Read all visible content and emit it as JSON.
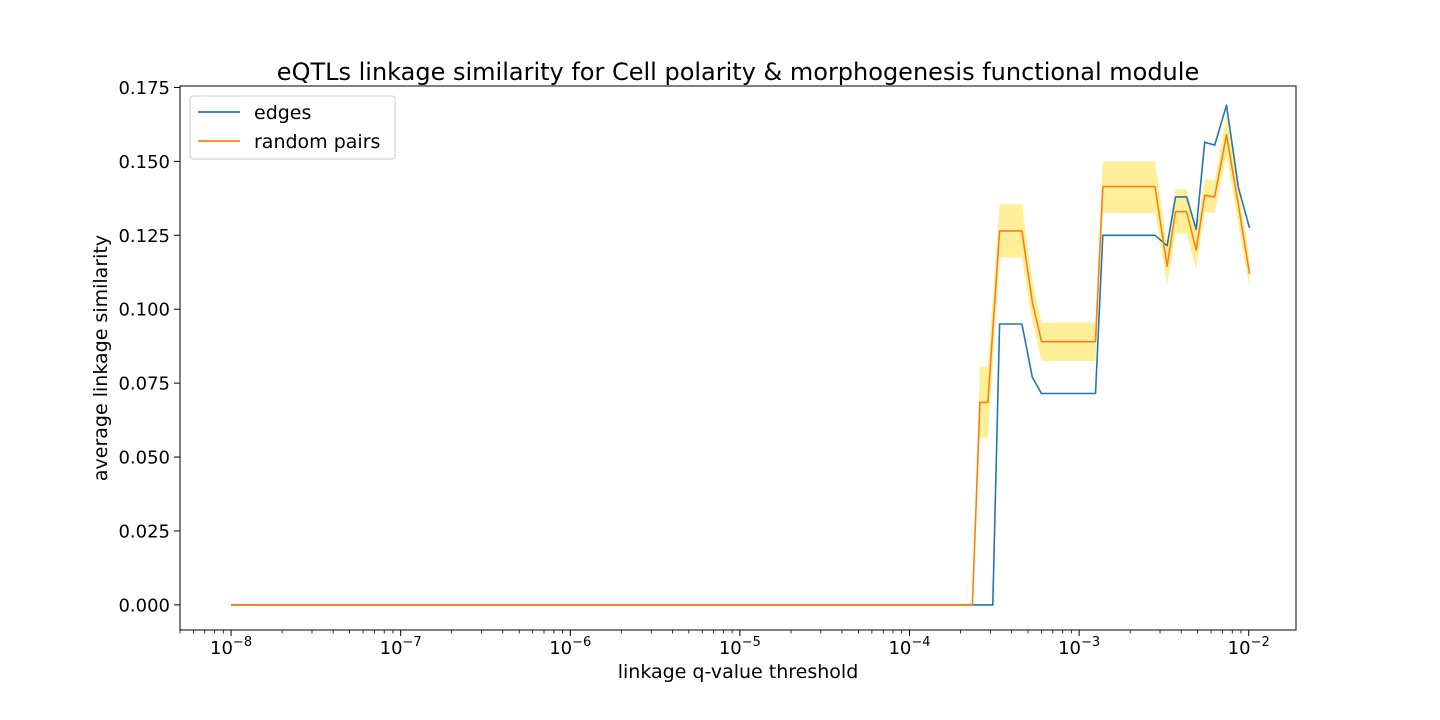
{
  "chart_data": {
    "type": "line",
    "title": "eQTLs linkage similarity for Cell polarity & morphogenesis functional module",
    "xlabel": "linkage q-value threshold",
    "ylabel": "average linkage similarity",
    "xscale": "log",
    "xlim": [
      5e-09,
      0.019
    ],
    "ylim": [
      -0.0085,
      0.1755
    ],
    "x_ticks": [
      {
        "value": 1e-08,
        "base": "10",
        "exp": "−8"
      },
      {
        "value": 1e-07,
        "base": "10",
        "exp": "−7"
      },
      {
        "value": 1e-06,
        "base": "10",
        "exp": "−6"
      },
      {
        "value": 1e-05,
        "base": "10",
        "exp": "−5"
      },
      {
        "value": 0.0001,
        "base": "10",
        "exp": "−4"
      },
      {
        "value": 0.001,
        "base": "10",
        "exp": "−3"
      },
      {
        "value": 0.01,
        "base": "10",
        "exp": "−2"
      }
    ],
    "y_ticks": [
      {
        "value": 0.0,
        "label": "0.000"
      },
      {
        "value": 0.025,
        "label": "0.025"
      },
      {
        "value": 0.05,
        "label": "0.050"
      },
      {
        "value": 0.075,
        "label": "0.075"
      },
      {
        "value": 0.1,
        "label": "0.100"
      },
      {
        "value": 0.125,
        "label": "0.125"
      },
      {
        "value": 0.15,
        "label": "0.150"
      },
      {
        "value": 0.175,
        "label": "0.175"
      }
    ],
    "grid": false,
    "legend_position": "top-left",
    "series": [
      {
        "name": "edges",
        "color": "#1f77b4",
        "points": [
          [
            1e-08,
            0
          ],
          [
            0.000235,
            0
          ],
          [
            0.00026,
            0
          ],
          [
            0.000285,
            0
          ],
          [
            0.00031,
            0
          ],
          [
            0.00034,
            0.095
          ],
          [
            0.00046,
            0.095
          ],
          [
            0.00053,
            0.077
          ],
          [
            0.0006,
            0.0715
          ],
          [
            0.00125,
            0.0715
          ],
          [
            0.00138,
            0.125
          ],
          [
            0.0028,
            0.125
          ],
          [
            0.0033,
            0.1215
          ],
          [
            0.0037,
            0.138
          ],
          [
            0.0043,
            0.138
          ],
          [
            0.0049,
            0.127
          ],
          [
            0.0055,
            0.1565
          ],
          [
            0.0063,
            0.1555
          ],
          [
            0.0074,
            0.169
          ],
          [
            0.0087,
            0.141
          ],
          [
            0.0101,
            0.1275
          ]
        ]
      },
      {
        "name": "random pairs",
        "color": "#ff7f0e",
        "points": [
          [
            1e-08,
            0
          ],
          [
            0.000235,
            0
          ],
          [
            0.00026,
            0.0685
          ],
          [
            0.00029,
            0.0685
          ],
          [
            0.00034,
            0.1265
          ],
          [
            0.00046,
            0.1265
          ],
          [
            0.00053,
            0.1025
          ],
          [
            0.0006,
            0.089
          ],
          [
            0.00125,
            0.089
          ],
          [
            0.00138,
            0.1415
          ],
          [
            0.0028,
            0.1415
          ],
          [
            0.0033,
            0.1145
          ],
          [
            0.0037,
            0.133
          ],
          [
            0.0043,
            0.133
          ],
          [
            0.0049,
            0.12
          ],
          [
            0.0055,
            0.1385
          ],
          [
            0.0063,
            0.138
          ],
          [
            0.0074,
            0.159
          ],
          [
            0.0087,
            0.135
          ],
          [
            0.0101,
            0.112
          ]
        ]
      }
    ],
    "confidence_band": {
      "color": "#ffd700",
      "opacity": 0.4,
      "x": [
        0.000235,
        0.00026,
        0.00029,
        0.00034,
        0.00046,
        0.00053,
        0.0006,
        0.00125,
        0.00138,
        0.0028,
        0.0033,
        0.0037,
        0.0043,
        0.0049,
        0.0055,
        0.0063,
        0.0074,
        0.0087,
        0.0101
      ],
      "lower": [
        0,
        0.0565,
        0.0565,
        0.1175,
        0.1175,
        0.096,
        0.0825,
        0.0825,
        0.1325,
        0.1325,
        0.108,
        0.1255,
        0.1255,
        0.1135,
        0.133,
        0.1325,
        0.152,
        0.128,
        0.1075
      ],
      "upper": [
        0,
        0.0805,
        0.0805,
        0.1355,
        0.1355,
        0.1095,
        0.0955,
        0.0955,
        0.15,
        0.15,
        0.121,
        0.1405,
        0.1405,
        0.1265,
        0.144,
        0.1435,
        0.166,
        0.142,
        0.1165
      ]
    }
  }
}
